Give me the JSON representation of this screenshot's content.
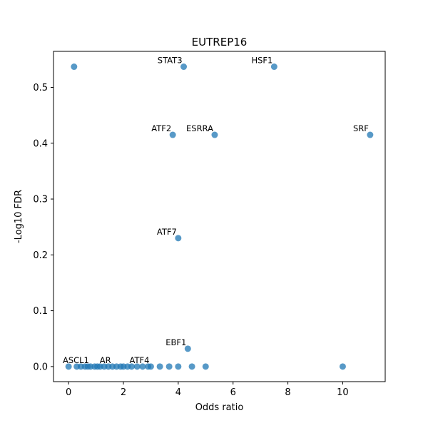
{
  "chart_data": {
    "type": "scatter",
    "title": "EUTREP16",
    "xlabel": "Odds ratio",
    "ylabel": "-Log10 FDR",
    "xlim": [
      -0.55,
      11.55
    ],
    "ylim": [
      -0.027,
      0.5645
    ],
    "xticks": [
      0,
      2,
      4,
      6,
      8,
      10
    ],
    "yticks": [
      0.0,
      0.1,
      0.2,
      0.3,
      0.4,
      0.5
    ],
    "ytick_labels": [
      "0.0",
      "0.1",
      "0.2",
      "0.3",
      "0.4",
      "0.5"
    ],
    "grid": false,
    "marker_color": "#1f77b4",
    "points": [
      {
        "x": 0.2,
        "y": 0.537
      },
      {
        "x": 4.2,
        "y": 0.537
      },
      {
        "x": 7.5,
        "y": 0.537
      },
      {
        "x": 3.8,
        "y": 0.415
      },
      {
        "x": 5.33,
        "y": 0.415
      },
      {
        "x": 11.0,
        "y": 0.415
      },
      {
        "x": 4.0,
        "y": 0.23
      },
      {
        "x": 4.35,
        "y": 0.032
      },
      {
        "x": 0.0,
        "y": 0.0
      },
      {
        "x": 0.3,
        "y": 0.0
      },
      {
        "x": 0.45,
        "y": 0.0
      },
      {
        "x": 0.6,
        "y": 0.0
      },
      {
        "x": 0.7,
        "y": 0.0
      },
      {
        "x": 0.8,
        "y": 0.0
      },
      {
        "x": 0.95,
        "y": 0.0
      },
      {
        "x": 1.05,
        "y": 0.0
      },
      {
        "x": 1.15,
        "y": 0.0
      },
      {
        "x": 1.3,
        "y": 0.0
      },
      {
        "x": 1.45,
        "y": 0.0
      },
      {
        "x": 1.6,
        "y": 0.0
      },
      {
        "x": 1.75,
        "y": 0.0
      },
      {
        "x": 1.9,
        "y": 0.0
      },
      {
        "x": 2.0,
        "y": 0.0
      },
      {
        "x": 2.15,
        "y": 0.0
      },
      {
        "x": 2.3,
        "y": 0.0
      },
      {
        "x": 2.5,
        "y": 0.0
      },
      {
        "x": 2.7,
        "y": 0.0
      },
      {
        "x": 2.9,
        "y": 0.0
      },
      {
        "x": 3.0,
        "y": 0.0
      },
      {
        "x": 3.33,
        "y": 0.0
      },
      {
        "x": 3.67,
        "y": 0.0
      },
      {
        "x": 4.0,
        "y": 0.0
      },
      {
        "x": 4.5,
        "y": 0.0
      },
      {
        "x": 5.0,
        "y": 0.0
      },
      {
        "x": 10.0,
        "y": 0.0
      }
    ],
    "annotations": [
      {
        "text": "STAT3",
        "x": 4.2,
        "y": 0.537
      },
      {
        "text": "HSF1",
        "x": 7.5,
        "y": 0.537
      },
      {
        "text": "ATF2",
        "x": 3.8,
        "y": 0.415
      },
      {
        "text": "ESRRA",
        "x": 5.33,
        "y": 0.415
      },
      {
        "text": "SRF",
        "x": 11.0,
        "y": 0.415
      },
      {
        "text": "ATF7",
        "x": 4.0,
        "y": 0.23
      },
      {
        "text": "EBF1",
        "x": 4.35,
        "y": 0.032
      },
      {
        "text": "ASCL1",
        "x": 0.8,
        "y": 0.0
      },
      {
        "text": "AR",
        "x": 1.6,
        "y": 0.0
      },
      {
        "text": "ATF4",
        "x": 3.0,
        "y": 0.0
      }
    ]
  }
}
